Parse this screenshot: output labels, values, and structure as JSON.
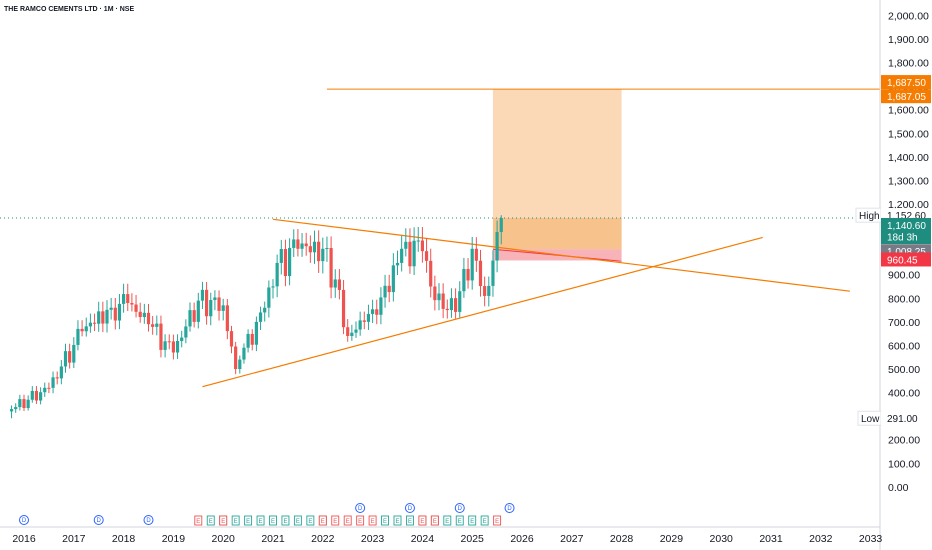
{
  "chart_data": {
    "type": "candlestick",
    "title": "THE RAMCO CEMENTS LTD · 1M · NSE",
    "interval": "1M",
    "exchange": "NSE",
    "ylim": [
      -40,
      2045
    ],
    "y_ticks": [
      "2,000.00",
      "1,900.00",
      "1,800.00",
      "1,700.00",
      "1,600.00",
      "1,500.00",
      "1,400.00",
      "1,300.00",
      "1,200.00",
      "1,100.00",
      "1,000.00",
      "900.00",
      "800.00",
      "700.00",
      "600.00",
      "500.00",
      "400.00",
      "300.00",
      "200.00",
      "100.00",
      "0.00"
    ],
    "x_ticks": [
      "2016",
      "2017",
      "2018",
      "2019",
      "2020",
      "2021",
      "2022",
      "2023",
      "2024",
      "2025",
      "2026",
      "2027",
      "2028",
      "2029",
      "2030",
      "2031",
      "2032",
      "2033"
    ],
    "colors": {
      "up": "#26a69a",
      "down": "#ef5350",
      "line": "#f57c00",
      "target_zone": "#f9cc9d",
      "stop_zone": "#f7a6ad",
      "last_price": "#1e8c7e"
    },
    "ohlc_anchor_points": [
      [
        "2015-09",
        330
      ],
      [
        "2016-06",
        420
      ],
      [
        "2017-02",
        660
      ],
      [
        "2017-09",
        760
      ],
      [
        "2018-01",
        780
      ],
      [
        "2018-06",
        690
      ],
      [
        "2018-12",
        570
      ],
      [
        "2019-06",
        790
      ],
      [
        "2019-12",
        770
      ],
      [
        "2020-03",
        500
      ],
      [
        "2020-04",
        540
      ],
      [
        "2020-10",
        760
      ],
      [
        "2021-01",
        950
      ],
      [
        "2021-06",
        1010
      ],
      [
        "2021-12",
        1010
      ],
      [
        "2022-03",
        880
      ],
      [
        "2022-06",
        640
      ],
      [
        "2022-10",
        700
      ],
      [
        "2023-01",
        730
      ],
      [
        "2023-07",
        1010
      ],
      [
        "2023-12",
        1000
      ],
      [
        "2024-02",
        850
      ],
      [
        "2024-06",
        750
      ],
      [
        "2024-09",
        830
      ],
      [
        "2024-12",
        1010
      ],
      [
        "2025-03",
        810
      ],
      [
        "2025-05",
        960
      ],
      [
        "2025-07",
        1140.6
      ]
    ],
    "last_price": "1,140.60",
    "countdown": "18d 3h",
    "high": {
      "label": "High",
      "value": "1,152.60"
    },
    "low": {
      "label": "Low",
      "value": "291.00"
    },
    "price_tags": [
      {
        "value": "1,687.50",
        "price": 1687.5,
        "color": "#f57c00"
      },
      {
        "value": "1,687.05",
        "price": 1687.05,
        "color": "#f57c00"
      },
      {
        "value": "1,008.25",
        "price": 1008.25,
        "color": "#787b86"
      },
      {
        "value": "960.45",
        "price": 960.45,
        "color": "#f23645"
      }
    ],
    "trendlines": [
      {
        "from": [
          "2021-00",
          1135
        ],
        "to": [
          "2032-07",
          830
        ]
      },
      {
        "from": [
          "2019-07",
          425
        ],
        "to": [
          "2030-10",
          1058
        ]
      }
    ],
    "horizontal_line": {
      "price": 1687.3,
      "from": "2022-01",
      "to": "2034-00"
    },
    "position": {
      "entry": 1008.25,
      "target": 1687.05,
      "stop": 960.45,
      "from": "2025-05",
      "to": "2028-00"
    },
    "events": {
      "dividends_bottom": [
        "2016-00",
        "2017-06",
        "2018-06"
      ],
      "dividends_top": [
        "2022-09",
        "2023-09",
        "2024-09",
        "2025-09"
      ],
      "earnings_up": [
        "2019-09",
        "2019-12",
        "2020-03",
        "2020-06",
        "2020-09",
        "2020-12",
        "2021-03",
        "2021-06",
        "2021-09",
        "2021-12",
        "2023-03",
        "2023-06",
        "2023-09",
        "2023-12",
        "2024-03",
        "2024-06",
        "2024-09",
        "2024-12",
        "2025-03"
      ],
      "earnings_down": [
        "2019-06",
        "2020-00",
        "2022-00",
        "2022-03",
        "2022-06",
        "2022-09",
        "2022-12",
        "2024-00",
        "2024-03",
        "2025-06"
      ],
      "glyph_dividend": "D",
      "glyph_earnings": "E"
    }
  }
}
